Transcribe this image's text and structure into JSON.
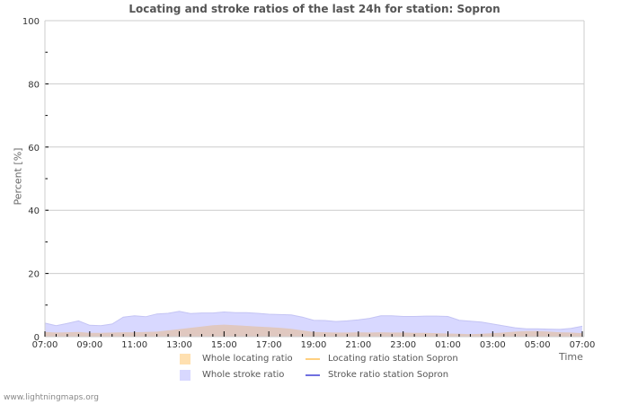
{
  "chart": {
    "title": "Locating and stroke ratios of the last 24h for station: Sopron",
    "ylabel": "Percent   [%]",
    "xlabel": "Time",
    "y_ticks": [
      "0",
      "20",
      "40",
      "60",
      "80",
      "100"
    ],
    "x_ticks": [
      "07:00",
      "09:00",
      "11:00",
      "13:00",
      "15:00",
      "17:00",
      "19:00",
      "21:00",
      "23:00",
      "01:00",
      "03:00",
      "05:00",
      "07:00"
    ],
    "legend": [
      {
        "label": "Whole locating ratio",
        "type": "area",
        "color": "#ffe0b0"
      },
      {
        "label": "Locating ratio station Sopron",
        "type": "line",
        "color": "#ffd080"
      },
      {
        "label": "Whole stroke ratio",
        "type": "area",
        "color": "#d8d8ff"
      },
      {
        "label": "Stroke ratio station Sopron",
        "type": "line",
        "color": "#7070e0"
      }
    ],
    "footer": "www.lightningmaps.org"
  },
  "chart_data": {
    "type": "area",
    "title": "Locating and stroke ratios of the last 24h for station: Sopron",
    "xlabel": "Time",
    "ylabel": "Percent [%]",
    "ylim": [
      0,
      100
    ],
    "grid": true,
    "legend_position": "bottom",
    "x": [
      "07:00",
      "07:30",
      "08:00",
      "08:30",
      "09:00",
      "09:30",
      "10:00",
      "10:30",
      "11:00",
      "11:30",
      "12:00",
      "12:30",
      "13:00",
      "13:30",
      "14:00",
      "14:30",
      "15:00",
      "15:30",
      "16:00",
      "16:30",
      "17:00",
      "17:30",
      "18:00",
      "18:30",
      "19:00",
      "19:30",
      "20:00",
      "20:30",
      "21:00",
      "21:30",
      "22:00",
      "22:30",
      "23:00",
      "23:30",
      "00:00",
      "00:30",
      "01:00",
      "01:30",
      "02:00",
      "02:30",
      "03:00",
      "03:30",
      "04:00",
      "04:30",
      "05:00",
      "05:30",
      "06:00",
      "06:30",
      "07:00"
    ],
    "series": [
      {
        "name": "Whole stroke ratio",
        "color": "#d8d8ff",
        "values": [
          4.3,
          3.5,
          4.2,
          5.0,
          3.6,
          3.5,
          4.0,
          6.2,
          6.6,
          6.3,
          7.2,
          7.4,
          8.0,
          7.3,
          7.5,
          7.5,
          7.8,
          7.6,
          7.6,
          7.4,
          7.1,
          7.0,
          6.9,
          6.2,
          5.2,
          5.1,
          4.8,
          5.0,
          5.3,
          5.8,
          6.6,
          6.6,
          6.4,
          6.4,
          6.5,
          6.5,
          6.4,
          5.2,
          4.9,
          4.6,
          4.0,
          3.4,
          2.8,
          2.5,
          2.5,
          2.4,
          2.3,
          2.6,
          3.3
        ]
      },
      {
        "name": "Whole locating ratio",
        "color": "#e0c8c0",
        "values": [
          1.5,
          1.3,
          1.4,
          1.5,
          1.2,
          1.2,
          1.3,
          1.4,
          1.4,
          1.5,
          1.6,
          2.0,
          2.4,
          2.8,
          3.2,
          3.6,
          3.8,
          3.6,
          3.4,
          3.2,
          3.0,
          2.8,
          2.5,
          2.0,
          1.5,
          1.4,
          1.3,
          1.3,
          1.4,
          1.3,
          1.4,
          1.3,
          1.3,
          1.2,
          1.2,
          1.1,
          1.0,
          0.9,
          0.8,
          0.9,
          1.1,
          1.3,
          1.6,
          1.8,
          1.8,
          1.6,
          1.4,
          1.3,
          1.1
        ]
      },
      {
        "name": "Locating ratio station Sopron",
        "color": "#ffd080",
        "values": []
      },
      {
        "name": "Stroke ratio station Sopron",
        "color": "#7070e0",
        "values": []
      }
    ]
  }
}
